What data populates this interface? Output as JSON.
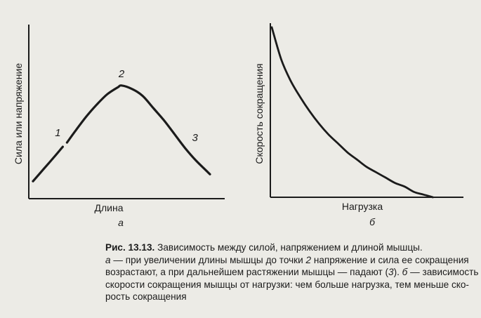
{
  "chart_data": [
    {
      "type": "line",
      "panel_letter": "а",
      "xlabel": "Длина",
      "ylabel": "Сила или напряжение",
      "grid": false,
      "x": [
        0,
        0.06,
        0.12,
        0.18,
        0.24,
        0.3,
        0.36,
        0.42,
        0.48,
        0.5,
        0.56,
        0.62,
        0.68,
        0.74,
        0.8,
        0.86,
        0.92,
        0.98,
        1.0
      ],
      "y": [
        0.1,
        0.17,
        0.24,
        0.31,
        0.39,
        0.47,
        0.54,
        0.6,
        0.64,
        0.65,
        0.63,
        0.59,
        0.52,
        0.45,
        0.37,
        0.29,
        0.22,
        0.16,
        0.14
      ],
      "annotations": [
        {
          "text": "1",
          "x": 0.18,
          "y": 0.31
        },
        {
          "text": "2",
          "x": 0.5,
          "y": 0.65
        },
        {
          "text": "3",
          "x": 0.86,
          "y": 0.29
        }
      ]
    },
    {
      "type": "line",
      "panel_letter": "б",
      "xlabel": "Нагрузка",
      "ylabel": "Скорость сокращения",
      "grid": false,
      "x": [
        0,
        0.05,
        0.1,
        0.15,
        0.2,
        0.25,
        0.3,
        0.35,
        0.4,
        0.45,
        0.5,
        0.55,
        0.6,
        0.65,
        0.7,
        0.75,
        0.8,
        0.85
      ],
      "y": [
        0.95,
        0.77,
        0.65,
        0.56,
        0.48,
        0.41,
        0.35,
        0.3,
        0.25,
        0.21,
        0.17,
        0.14,
        0.11,
        0.08,
        0.06,
        0.03,
        0.015,
        0.0
      ]
    }
  ],
  "caption": {
    "title_bold": "Рис. 13.13.",
    "title_rest": " Зависимость между силой, напряжением и длиной мышцы.",
    "l2_a": "а",
    "l2_text": " — при увеличении длины мышцы до точки ",
    "l2_num": "2",
    "l2_text2": " напряжение и сила ее сокращения",
    "l3_text": "возрастают, а при дальнейшем растяжении мышцы — падают (",
    "l3_num": "3",
    "l3_text2": "). ",
    "l3_b": "б",
    "l3_text3": " — зависимость",
    "l4_text": "скорости сокращения мышцы от нагрузки: чем больше нагрузка, тем меньше ско-",
    "l5_text": "рость сокращения"
  }
}
